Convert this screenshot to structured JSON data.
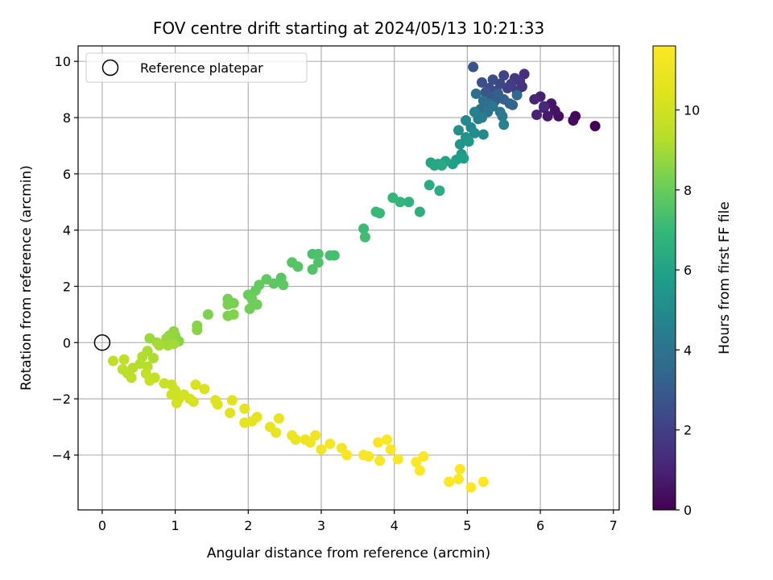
{
  "chart_data": {
    "type": "scatter",
    "title": "FOV centre drift starting at 2024/05/13 10:21:33",
    "xlabel": "Angular distance from reference (arcmin)",
    "ylabel": "Rotation from reference (arcmin)",
    "xlim": [
      -0.33,
      7.08
    ],
    "ylim": [
      -5.95,
      10.55
    ],
    "xticks": [
      0,
      1,
      2,
      3,
      4,
      5,
      6,
      7
    ],
    "yticks": [
      -4,
      -2,
      0,
      2,
      4,
      6,
      8,
      10
    ],
    "grid": true,
    "legend": {
      "placement": "top-left",
      "label": "Reference platepar"
    },
    "reference_point": {
      "x": 0,
      "y": 0
    },
    "colorbar": {
      "label": "Hours from first FF file",
      "colormap": "viridis",
      "range": [
        0,
        11.6
      ],
      "ticks": [
        0,
        2,
        4,
        6,
        8,
        10
      ]
    },
    "points": [
      [
        6.75,
        7.7,
        0.0
      ],
      [
        6.48,
        8.05,
        0.2
      ],
      [
        6.45,
        7.9,
        0.3
      ],
      [
        6.25,
        8.05,
        0.4
      ],
      [
        6.2,
        8.25,
        0.5
      ],
      [
        6.15,
        8.5,
        0.6
      ],
      [
        6.1,
        8.05,
        0.7
      ],
      [
        6.05,
        8.35,
        0.8
      ],
      [
        6.0,
        8.75,
        0.9
      ],
      [
        5.95,
        8.1,
        1.0
      ],
      [
        5.92,
        8.65,
        1.1
      ],
      [
        6.05,
        8.4,
        1.2
      ],
      [
        5.78,
        9.55,
        1.4
      ],
      [
        5.75,
        9.1,
        1.5
      ],
      [
        5.72,
        9.3,
        1.6
      ],
      [
        5.68,
        8.95,
        1.7
      ],
      [
        5.65,
        9.4,
        1.8
      ],
      [
        5.6,
        9.2,
        1.9
      ],
      [
        5.55,
        9.05,
        2.0
      ],
      [
        5.5,
        9.5,
        2.1
      ],
      [
        5.45,
        9.2,
        2.2
      ],
      [
        5.4,
        8.95,
        2.3
      ],
      [
        5.35,
        9.35,
        2.4
      ],
      [
        5.3,
        9.05,
        2.5
      ],
      [
        5.2,
        9.25,
        2.6
      ],
      [
        5.08,
        9.8,
        2.7
      ],
      [
        5.25,
        8.9,
        2.8
      ],
      [
        5.33,
        8.75,
        2.9
      ],
      [
        5.38,
        8.6,
        3.0
      ],
      [
        5.42,
        8.85,
        3.1
      ],
      [
        5.5,
        8.65,
        3.2
      ],
      [
        5.58,
        8.5,
        3.3
      ],
      [
        5.62,
        8.45,
        3.4
      ],
      [
        5.68,
        8.8,
        3.5
      ],
      [
        5.3,
        8.5,
        3.6
      ],
      [
        5.18,
        8.3,
        3.7
      ],
      [
        5.12,
        8.85,
        3.8
      ],
      [
        5.22,
        8.6,
        3.9
      ],
      [
        5.28,
        8.2,
        4.0
      ],
      [
        5.35,
        8.4,
        4.1
      ],
      [
        5.45,
        8.2,
        4.2
      ],
      [
        5.48,
        8.05,
        4.3
      ],
      [
        5.2,
        8.0,
        4.4
      ],
      [
        5.15,
        7.95,
        4.5
      ],
      [
        5.1,
        8.2,
        4.6
      ],
      [
        5.5,
        7.75,
        4.7
      ],
      [
        5.05,
        7.65,
        4.8
      ],
      [
        4.98,
        7.9,
        4.9
      ],
      [
        5.22,
        7.4,
        5.0
      ],
      [
        5.1,
        7.45,
        5.1
      ],
      [
        4.88,
        7.55,
        5.2
      ],
      [
        4.98,
        7.3,
        5.3
      ],
      [
        4.9,
        7.05,
        5.4
      ],
      [
        5.02,
        7.15,
        5.5
      ],
      [
        4.92,
        6.7,
        5.6
      ],
      [
        4.85,
        6.5,
        5.7
      ],
      [
        4.95,
        6.55,
        5.8
      ],
      [
        4.8,
        6.35,
        5.9
      ],
      [
        4.7,
        6.45,
        6.0
      ],
      [
        4.6,
        6.35,
        6.0
      ],
      [
        4.5,
        6.4,
        6.1
      ],
      [
        4.55,
        6.3,
        6.2
      ],
      [
        4.65,
        6.3,
        6.3
      ],
      [
        4.48,
        5.6,
        6.4
      ],
      [
        4.62,
        5.4,
        6.5
      ],
      [
        4.35,
        4.65,
        6.6
      ],
      [
        4.2,
        5.0,
        6.7
      ],
      [
        4.08,
        5.0,
        6.8
      ],
      [
        3.98,
        5.15,
        6.9
      ],
      [
        3.8,
        4.6,
        7.0
      ],
      [
        3.75,
        4.65,
        7.05
      ],
      [
        3.58,
        4.05,
        7.1
      ],
      [
        3.6,
        3.75,
        7.2
      ],
      [
        3.18,
        3.1,
        7.3
      ],
      [
        3.12,
        3.1,
        7.35
      ],
      [
        2.88,
        3.15,
        7.4
      ],
      [
        2.96,
        3.15,
        7.45
      ],
      [
        2.96,
        2.85,
        7.5
      ],
      [
        2.88,
        2.6,
        7.55
      ],
      [
        2.6,
        2.85,
        7.6
      ],
      [
        2.68,
        2.7,
        7.65
      ],
      [
        2.45,
        2.3,
        7.7
      ],
      [
        2.35,
        2.1,
        7.75
      ],
      [
        2.48,
        2.05,
        7.8
      ],
      [
        2.25,
        2.25,
        7.85
      ],
      [
        2.15,
        2.05,
        7.9
      ],
      [
        2.1,
        1.85,
        7.95
      ],
      [
        2.0,
        1.7,
        8.0
      ],
      [
        2.05,
        1.55,
        8.05
      ],
      [
        2.12,
        1.35,
        8.1
      ],
      [
        2.02,
        1.2,
        8.15
      ],
      [
        1.72,
        1.55,
        8.2
      ],
      [
        1.8,
        1.4,
        8.25
      ],
      [
        1.72,
        1.35,
        8.3
      ],
      [
        1.45,
        1.0,
        8.35
      ],
      [
        1.72,
        0.95,
        8.4
      ],
      [
        1.8,
        1.0,
        8.45
      ],
      [
        1.3,
        0.6,
        8.5
      ],
      [
        1.3,
        0.45,
        8.55
      ],
      [
        1.05,
        0.05,
        8.6
      ],
      [
        1.0,
        0.25,
        8.65
      ],
      [
        0.98,
        0.4,
        8.7
      ],
      [
        0.92,
        0.25,
        8.75
      ],
      [
        0.88,
        0.15,
        8.8
      ],
      [
        0.65,
        0.15,
        8.85
      ],
      [
        0.75,
        0.0,
        8.9
      ],
      [
        0.98,
        -0.05,
        8.95
      ],
      [
        0.9,
        -0.1,
        9.0
      ],
      [
        0.78,
        -0.1,
        9.05
      ],
      [
        0.62,
        -0.3,
        9.1
      ],
      [
        0.7,
        -0.55,
        9.15
      ],
      [
        0.55,
        -0.5,
        9.2
      ],
      [
        0.52,
        -0.75,
        9.25
      ],
      [
        0.62,
        -0.85,
        9.3
      ],
      [
        0.42,
        -0.9,
        9.35
      ],
      [
        0.35,
        -1.1,
        9.4
      ],
      [
        0.4,
        -1.25,
        9.45
      ],
      [
        0.28,
        -0.95,
        9.5
      ],
      [
        0.3,
        -0.6,
        9.55
      ],
      [
        0.15,
        -0.65,
        9.6
      ],
      [
        0.6,
        -1.1,
        9.65
      ],
      [
        0.65,
        -1.35,
        9.7
      ],
      [
        0.72,
        -1.25,
        9.75
      ],
      [
        0.85,
        -1.45,
        9.8
      ],
      [
        0.95,
        -1.5,
        9.85
      ],
      [
        1.0,
        -1.7,
        9.9
      ],
      [
        0.95,
        -1.85,
        9.95
      ],
      [
        1.05,
        -2.0,
        10.0
      ],
      [
        1.02,
        -2.15,
        10.05
      ],
      [
        1.12,
        -1.85,
        10.1
      ],
      [
        1.2,
        -2.0,
        10.15
      ],
      [
        1.25,
        -2.1,
        10.2
      ],
      [
        1.28,
        -1.5,
        10.25
      ],
      [
        1.4,
        -1.65,
        10.3
      ],
      [
        1.55,
        -2.05,
        10.35
      ],
      [
        1.58,
        -2.2,
        10.4
      ],
      [
        1.75,
        -2.5,
        10.45
      ],
      [
        1.78,
        -2.05,
        10.5
      ],
      [
        1.95,
        -2.35,
        10.55
      ],
      [
        1.95,
        -2.85,
        10.6
      ],
      [
        2.05,
        -2.8,
        10.65
      ],
      [
        2.12,
        -2.65,
        10.7
      ],
      [
        2.3,
        -3.0,
        10.75
      ],
      [
        2.38,
        -3.2,
        10.8
      ],
      [
        2.42,
        -2.7,
        10.85
      ],
      [
        2.6,
        -3.3,
        10.9
      ],
      [
        2.65,
        -3.45,
        10.95
      ],
      [
        2.78,
        -3.45,
        11.0
      ],
      [
        2.85,
        -3.55,
        11.05
      ],
      [
        2.92,
        -3.3,
        11.1
      ],
      [
        3.0,
        -3.8,
        11.15
      ],
      [
        3.12,
        -3.6,
        11.2
      ],
      [
        3.28,
        -3.75,
        11.25
      ],
      [
        3.35,
        -4.0,
        11.3
      ],
      [
        3.58,
        -4.0,
        11.35
      ],
      [
        3.65,
        -4.05,
        11.38
      ],
      [
        3.78,
        -3.55,
        11.4
      ],
      [
        3.9,
        -3.45,
        11.42
      ],
      [
        3.95,
        -3.8,
        11.44
      ],
      [
        3.8,
        -4.2,
        11.46
      ],
      [
        4.05,
        -4.15,
        11.48
      ],
      [
        4.3,
        -4.25,
        11.5
      ],
      [
        4.35,
        -4.55,
        11.52
      ],
      [
        4.4,
        -4.05,
        11.54
      ],
      [
        4.75,
        -4.95,
        11.56
      ],
      [
        4.88,
        -4.85,
        11.57
      ],
      [
        4.9,
        -4.5,
        11.58
      ],
      [
        5.05,
        -5.15,
        11.59
      ],
      [
        5.22,
        -4.95,
        11.6
      ]
    ]
  }
}
